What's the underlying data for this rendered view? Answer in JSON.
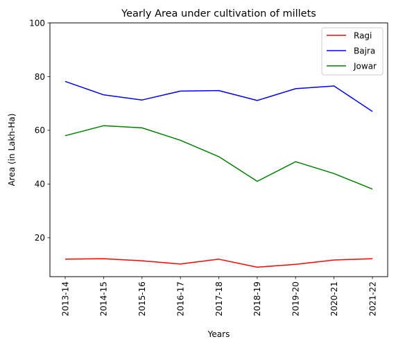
{
  "chart_data": {
    "type": "line",
    "title": "Yearly Area under cultivation of millets",
    "xlabel": "Years",
    "ylabel": "Area (in Lakh-Ha)",
    "categories": [
      "2013-14",
      "2014-15",
      "2015-16",
      "2016-17",
      "2017-18",
      "2018-19",
      "2019-20",
      "2020-21",
      "2021-22"
    ],
    "ylim": [
      5.5,
      100
    ],
    "yticks": [
      20,
      40,
      60,
      80,
      100
    ],
    "grid": false,
    "legend_position": "top-right",
    "series": [
      {
        "name": "Ragi",
        "color": "#ff0000",
        "values": [
          12.0,
          12.2,
          11.4,
          10.2,
          12.0,
          9.0,
          10.1,
          11.7,
          12.2
        ]
      },
      {
        "name": "Bajra",
        "color": "#0000ff",
        "values": [
          78.2,
          73.2,
          71.3,
          74.6,
          74.8,
          71.1,
          75.5,
          76.5,
          67.0
        ]
      },
      {
        "name": "Jowar",
        "color": "#008000",
        "values": [
          58.0,
          61.7,
          60.9,
          56.3,
          50.2,
          41.0,
          48.3,
          43.9,
          38.1
        ]
      }
    ]
  }
}
